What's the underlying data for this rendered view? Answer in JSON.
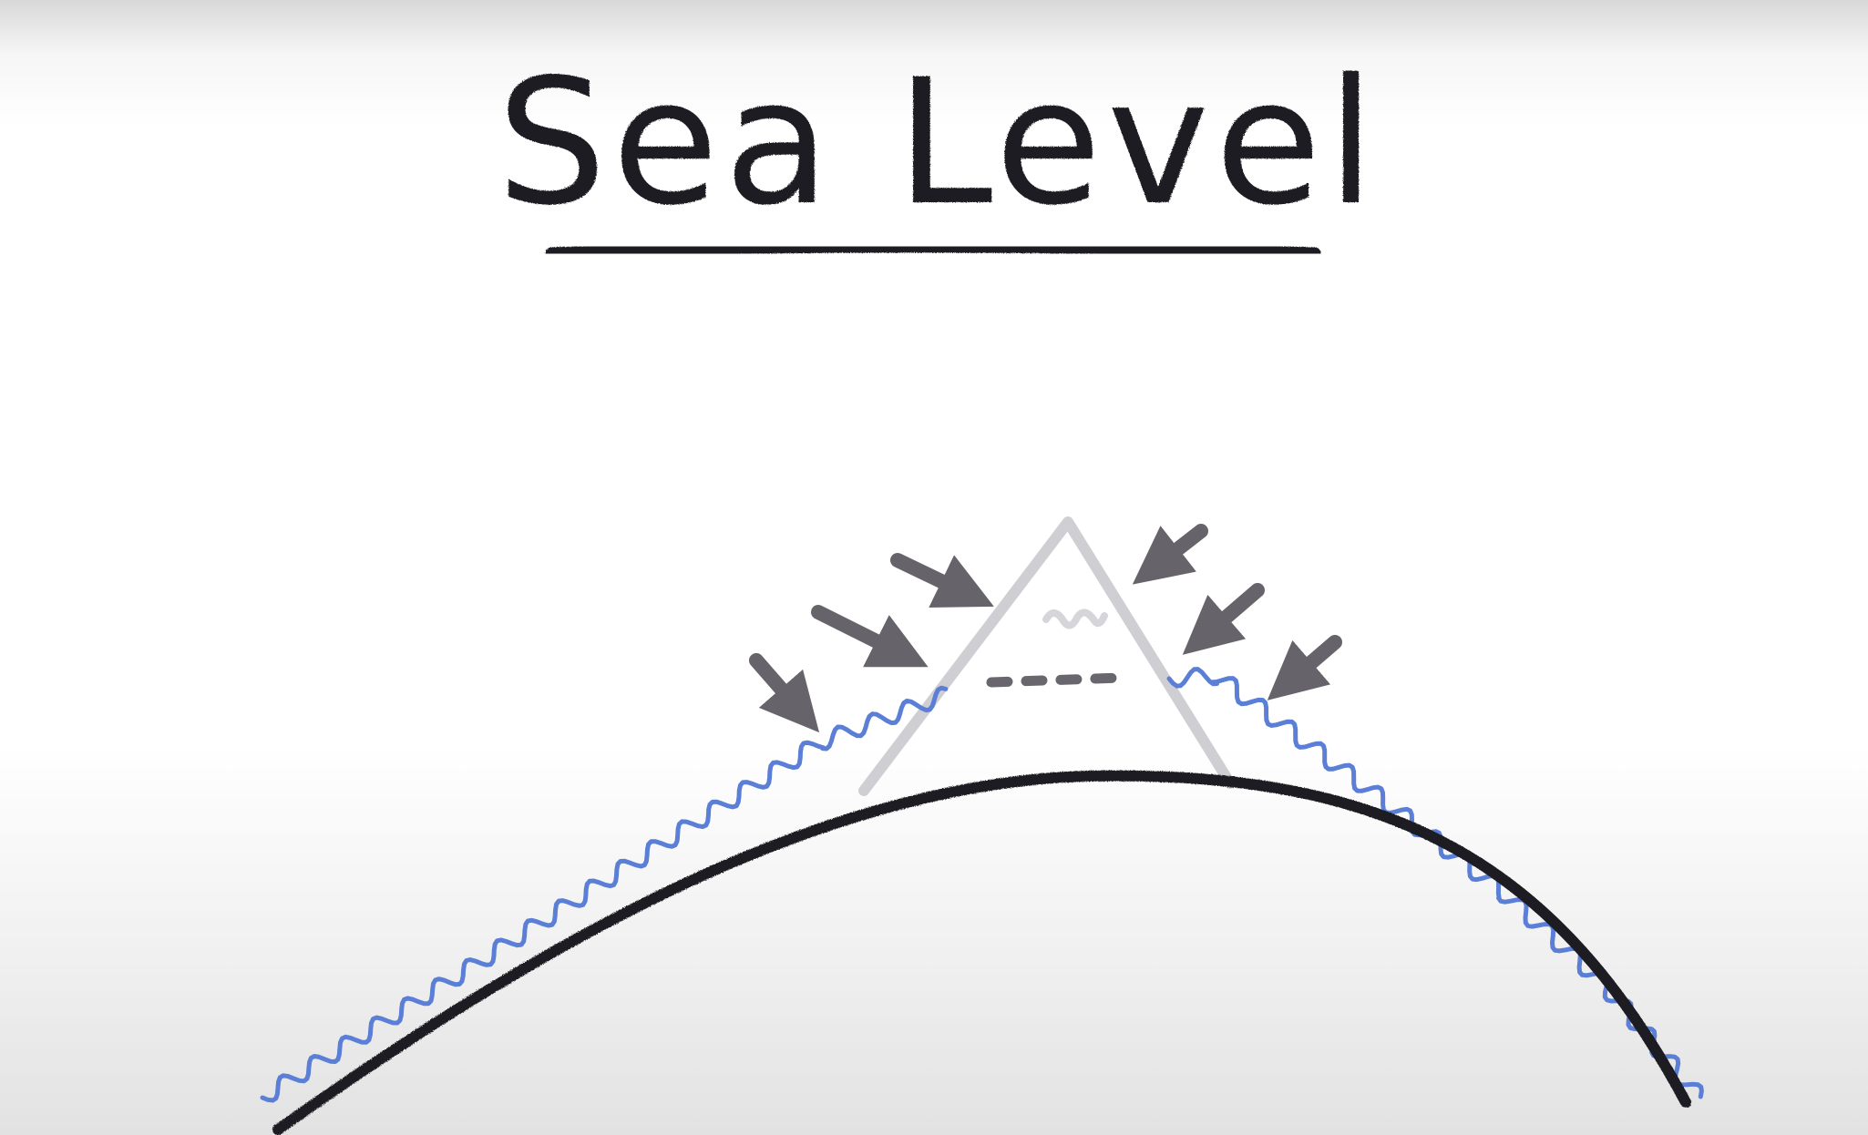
{
  "title": "Sea Level",
  "colors": {
    "ink": "#1b1b20",
    "water": "#5b7fd6",
    "mountain": "#cfcfd3",
    "arrows": "#67636b",
    "background": "#ffffff"
  },
  "icons": {
    "arrows_left": [
      "arrow-down-right-icon",
      "arrow-down-right-icon",
      "arrow-down-right-icon"
    ],
    "arrows_right": [
      "arrow-down-left-icon",
      "arrow-down-left-icon",
      "arrow-down-left-icon"
    ]
  }
}
